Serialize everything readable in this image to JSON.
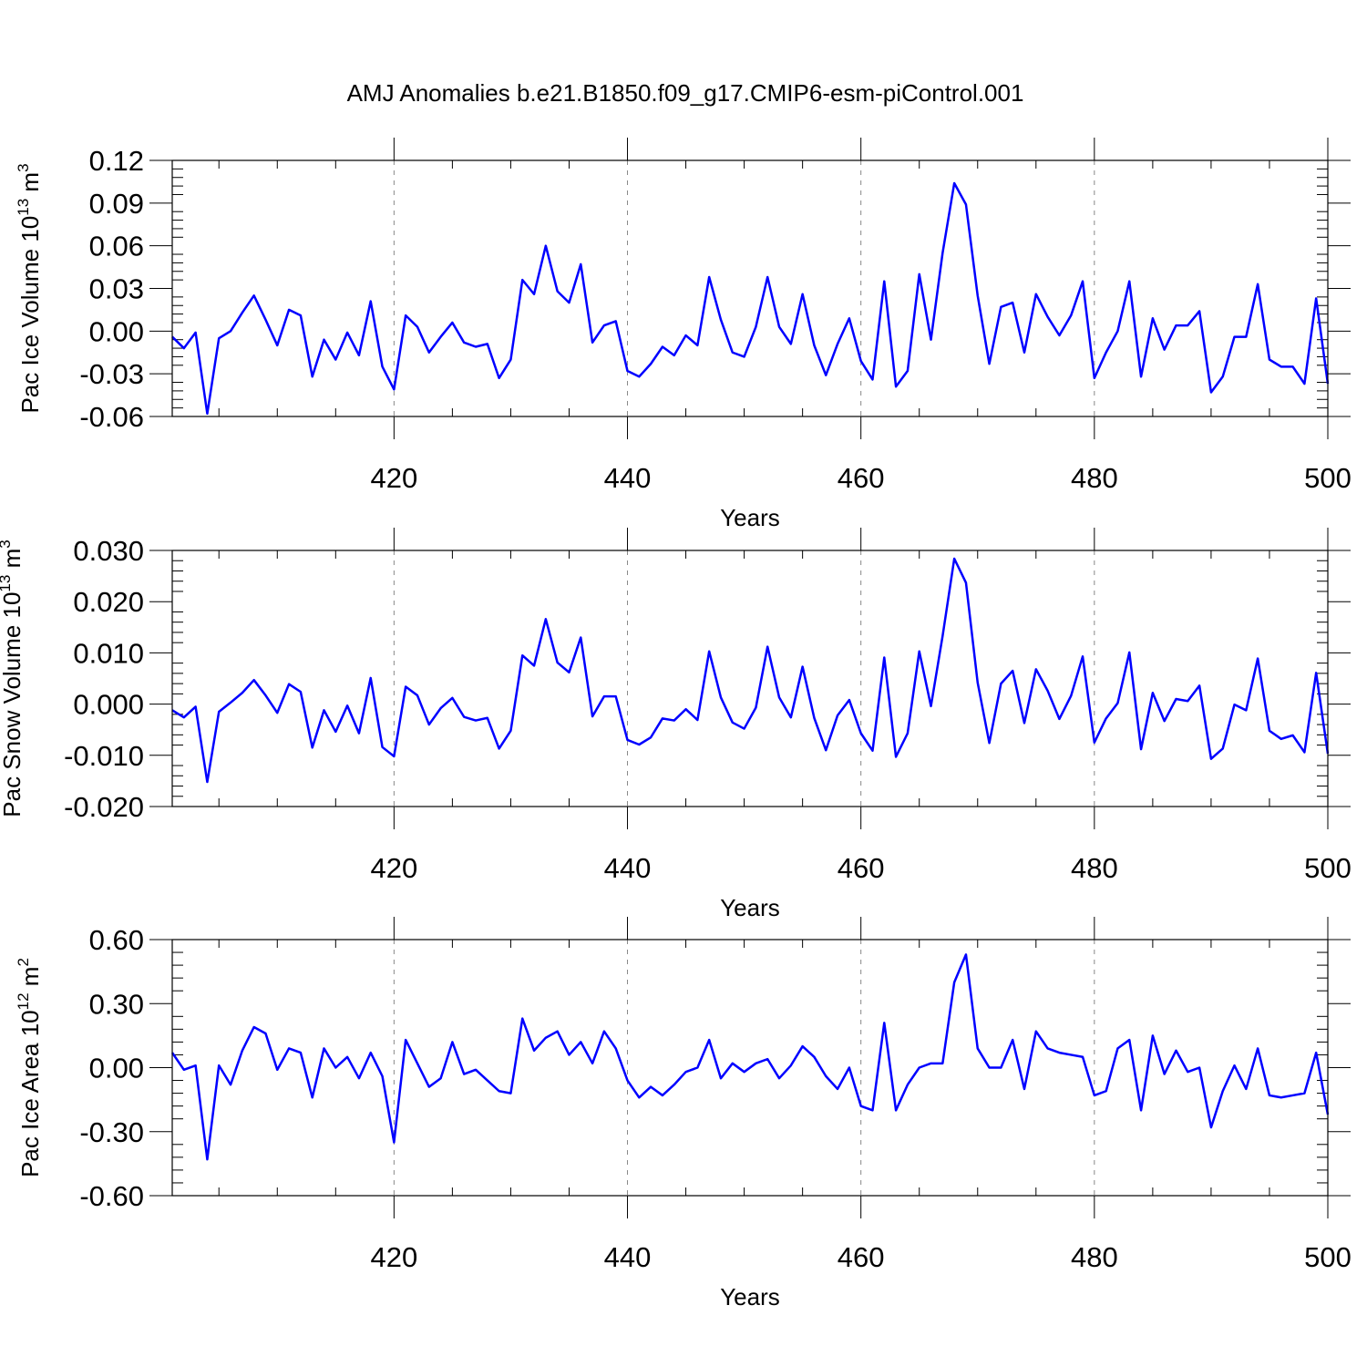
{
  "colors": {
    "line": "#0000ff",
    "axis": "#000000",
    "grid": "#888888",
    "background": "#ffffff"
  },
  "chart_data": {
    "title": "AMJ Anomalies b.e21.B1850.f09_g17.CMIP6-esm-piControl.001",
    "type": "line",
    "x": [
      401,
      402,
      403,
      404,
      405,
      406,
      407,
      408,
      409,
      410,
      411,
      412,
      413,
      414,
      415,
      416,
      417,
      418,
      419,
      420,
      421,
      422,
      423,
      424,
      425,
      426,
      427,
      428,
      429,
      430,
      431,
      432,
      433,
      434,
      435,
      436,
      437,
      438,
      439,
      440,
      441,
      442,
      443,
      444,
      445,
      446,
      447,
      448,
      449,
      450,
      451,
      452,
      453,
      454,
      455,
      456,
      457,
      458,
      459,
      460,
      461,
      462,
      463,
      464,
      465,
      466,
      467,
      468,
      469,
      470,
      471,
      472,
      473,
      474,
      475,
      476,
      477,
      478,
      479,
      480,
      481,
      482,
      483,
      484,
      485,
      486,
      487,
      488,
      489,
      490,
      491,
      492,
      493,
      494,
      495,
      496,
      497,
      498,
      499,
      500
    ],
    "panels": [
      {
        "name": "pac-ice-volume",
        "ylabel": "Pac Ice Volume 10",
        "ylabel_exp": "13",
        "ylabel_unit": " m",
        "ylabel_unit_exp": "3",
        "xlabel": "Years",
        "ylim": [
          -0.06,
          0.12
        ],
        "xlim": [
          401,
          500
        ],
        "yticks": [
          -0.06,
          -0.03,
          0.0,
          0.03,
          0.06,
          0.09,
          0.12
        ],
        "ytick_labels": [
          "-0.06",
          "-0.03",
          "0.00",
          "0.03",
          "0.06",
          "0.09",
          "0.12"
        ],
        "xticks": [
          420,
          440,
          460,
          480,
          500
        ],
        "xtick_labels": [
          "420",
          "440",
          "460",
          "480",
          "500"
        ],
        "values": [
          -0.004,
          -0.012,
          -0.001,
          -0.058,
          -0.005,
          0.0,
          0.013,
          0.025,
          0.008,
          -0.01,
          0.015,
          0.011,
          -0.032,
          -0.006,
          -0.02,
          -0.001,
          -0.017,
          0.021,
          -0.025,
          -0.041,
          0.011,
          0.003,
          -0.015,
          -0.004,
          0.006,
          -0.008,
          -0.011,
          -0.009,
          -0.033,
          -0.02,
          0.036,
          0.026,
          0.06,
          0.028,
          0.02,
          0.047,
          -0.008,
          0.004,
          0.007,
          -0.028,
          -0.032,
          -0.023,
          -0.011,
          -0.017,
          -0.003,
          -0.01,
          0.038,
          0.008,
          -0.015,
          -0.018,
          0.003,
          0.038,
          0.003,
          -0.009,
          0.026,
          -0.01,
          -0.031,
          -0.009,
          0.009,
          -0.021,
          -0.034,
          0.035,
          -0.039,
          -0.028,
          0.04,
          -0.006,
          0.055,
          0.104,
          0.089,
          0.025,
          -0.023,
          0.017,
          0.02,
          -0.015,
          0.026,
          0.01,
          -0.003,
          0.011,
          0.035,
          -0.033,
          -0.015,
          0.0,
          0.035,
          -0.032,
          0.009,
          -0.013,
          0.004,
          0.004,
          0.014,
          -0.043,
          -0.032,
          -0.004,
          -0.004,
          0.033,
          -0.02,
          -0.025,
          -0.025,
          -0.037,
          0.023,
          -0.037
        ]
      },
      {
        "name": "pac-snow-volume",
        "ylabel": "Pac Snow Volume 10",
        "ylabel_exp": "13",
        "ylabel_unit": " m",
        "ylabel_unit_exp": "3",
        "xlabel": "Years",
        "ylim": [
          -0.02,
          0.03
        ],
        "xlim": [
          401,
          500
        ],
        "yticks": [
          -0.02,
          -0.01,
          0.0,
          0.01,
          0.02,
          0.03
        ],
        "ytick_labels": [
          "-0.020",
          "-0.010",
          "0.000",
          "0.010",
          "0.020",
          "0.030"
        ],
        "xticks": [
          420,
          440,
          460,
          480,
          500
        ],
        "xtick_labels": [
          "420",
          "440",
          "460",
          "480",
          "500"
        ],
        "values": [
          -0.0012,
          -0.0026,
          -0.0005,
          -0.0152,
          -0.0015,
          0.0003,
          0.0022,
          0.0047,
          0.0017,
          -0.0017,
          0.0039,
          0.0024,
          -0.0085,
          -0.0012,
          -0.0054,
          -0.0003,
          -0.0057,
          0.0051,
          -0.0084,
          -0.0102,
          0.0034,
          0.0017,
          -0.004,
          -0.0008,
          0.0012,
          -0.0025,
          -0.0032,
          -0.0027,
          -0.0087,
          -0.0052,
          0.0095,
          0.0075,
          0.0166,
          0.0081,
          0.0062,
          0.013,
          -0.0024,
          0.0015,
          0.0015,
          -0.007,
          -0.0079,
          -0.0065,
          -0.0028,
          -0.0032,
          -0.001,
          -0.0031,
          0.0103,
          0.0013,
          -0.0036,
          -0.0048,
          -0.0007,
          0.0112,
          0.0013,
          -0.0026,
          0.0073,
          -0.0027,
          -0.009,
          -0.0022,
          0.0008,
          -0.0057,
          -0.0091,
          0.0091,
          -0.0103,
          -0.0057,
          0.0103,
          -0.0004,
          0.0133,
          0.0284,
          0.0237,
          0.0042,
          -0.0076,
          0.004,
          0.0065,
          -0.0037,
          0.0068,
          0.0026,
          -0.0029,
          0.0016,
          0.0093,
          -0.0075,
          -0.0028,
          0.0002,
          0.0101,
          -0.0088,
          0.0022,
          -0.0033,
          0.001,
          0.0006,
          0.0036,
          -0.0107,
          -0.0087,
          -0.0001,
          -0.0012,
          0.0089,
          -0.0052,
          -0.0068,
          -0.0061,
          -0.0094,
          0.0061,
          -0.0097
        ]
      },
      {
        "name": "pac-ice-area",
        "ylabel": "Pac Ice Area 10",
        "ylabel_exp": "12",
        "ylabel_unit": " m",
        "ylabel_unit_exp": "2",
        "xlabel": "Years",
        "ylim": [
          -0.6,
          0.6
        ],
        "xlim": [
          401,
          500
        ],
        "yticks": [
          -0.6,
          -0.3,
          0.0,
          0.3,
          0.6
        ],
        "ytick_labels": [
          "-0.60",
          "-0.30",
          "0.00",
          "0.30",
          "0.60"
        ],
        "xticks": [
          420,
          440,
          460,
          480,
          500
        ],
        "xtick_labels": [
          "420",
          "440",
          "460",
          "480",
          "500"
        ],
        "values": [
          0.07,
          -0.01,
          0.01,
          -0.43,
          0.01,
          -0.08,
          0.08,
          0.19,
          0.16,
          -0.01,
          0.09,
          0.07,
          -0.14,
          0.09,
          0.0,
          0.05,
          -0.05,
          0.07,
          -0.04,
          -0.35,
          0.13,
          0.02,
          -0.09,
          -0.05,
          0.12,
          -0.03,
          -0.01,
          -0.06,
          -0.11,
          -0.12,
          0.23,
          0.08,
          0.14,
          0.17,
          0.06,
          0.12,
          0.02,
          0.17,
          0.09,
          -0.06,
          -0.14,
          -0.09,
          -0.13,
          -0.08,
          -0.02,
          0.0,
          0.13,
          -0.05,
          0.02,
          -0.02,
          0.02,
          0.04,
          -0.05,
          0.01,
          0.1,
          0.05,
          -0.04,
          -0.1,
          0.0,
          -0.18,
          -0.2,
          0.21,
          -0.2,
          -0.08,
          0.0,
          0.02,
          0.02,
          0.4,
          0.53,
          0.09,
          0.0,
          0.0,
          0.13,
          -0.1,
          0.17,
          0.09,
          0.07,
          0.06,
          0.05,
          -0.13,
          -0.11,
          0.09,
          0.13,
          -0.2,
          0.15,
          -0.03,
          0.08,
          -0.02,
          0.0,
          -0.28,
          -0.11,
          0.01,
          -0.1,
          0.09,
          -0.13,
          -0.14,
          -0.13,
          -0.12,
          0.07,
          -0.22
        ]
      }
    ]
  }
}
